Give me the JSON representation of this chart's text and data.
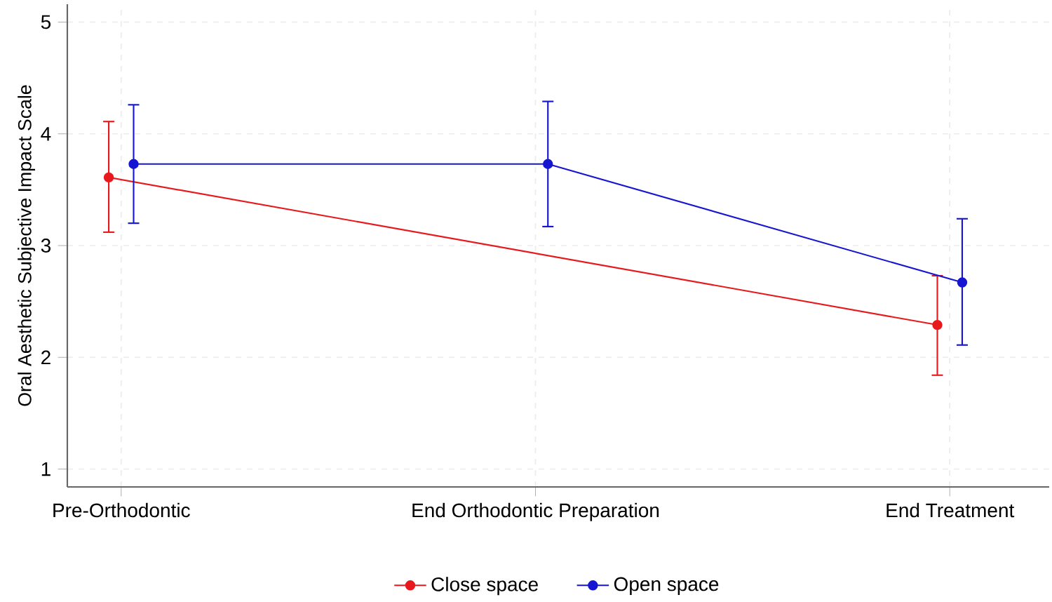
{
  "chart_data": {
    "type": "line",
    "categories": [
      "Pre-Orthodontic",
      "End Orthodontic Preparation",
      "End Treatment"
    ],
    "ylabel": "Oral Aesthetic Subjective Impact Scale",
    "series": [
      {
        "name": "Close space",
        "color": "#e8191c",
        "values": [
          3.61,
          null,
          2.29
        ],
        "errors": [
          [
            3.12,
            4.11
          ],
          null,
          [
            1.84,
            2.73
          ]
        ]
      },
      {
        "name": "Open space",
        "color": "#1616d2",
        "values": [
          3.73,
          3.73,
          2.67
        ],
        "errors": [
          [
            3.2,
            4.26
          ],
          [
            3.17,
            4.29
          ],
          [
            2.11,
            3.24
          ]
        ]
      }
    ],
    "ylim": [
      0.84,
      5.16
    ],
    "yticks": [
      1,
      2,
      3,
      4,
      5
    ],
    "grid": true,
    "legend": "bottom",
    "marker": "circle",
    "line_style": "solid"
  }
}
